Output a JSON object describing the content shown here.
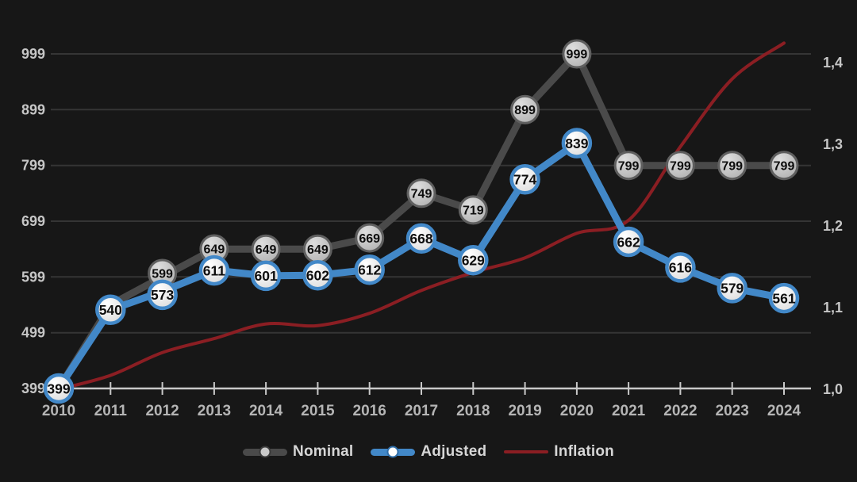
{
  "chart_data": {
    "type": "line",
    "title": "",
    "x": [
      2010,
      2011,
      2012,
      2013,
      2014,
      2015,
      2016,
      2017,
      2018,
      2019,
      2020,
      2021,
      2022,
      2023,
      2024
    ],
    "x_axis": {
      "tick_labels": [
        "2010",
        "2011",
        "2012",
        "2013",
        "2014",
        "2015",
        "2016",
        "2017",
        "2018",
        "2019",
        "2020",
        "2021",
        "2022",
        "2023",
        "2024"
      ]
    },
    "left_axis": {
      "tick_labels": [
        "399",
        "499",
        "599",
        "699",
        "799",
        "899",
        "999"
      ],
      "tick_values": [
        399,
        499,
        599,
        699,
        799,
        899,
        999
      ],
      "range": [
        399,
        999
      ]
    },
    "right_axis": {
      "tick_labels": [
        "1,0",
        "1,1",
        "1,2",
        "1,3",
        "1,4"
      ],
      "tick_values": [
        1.0,
        1.1,
        1.2,
        1.3,
        1.4
      ],
      "range": [
        1.0,
        1.42
      ]
    },
    "series": [
      {
        "name": "Nominal",
        "axis": "left",
        "color": "#4a4a4a",
        "marker_fill_light": "#dedede",
        "marker_fill_dark": "#b2b2b2",
        "marker_stroke": "#5f5f5f",
        "label_color": "#0d0d0d",
        "values": [
          399,
          549,
          599,
          649,
          649,
          649,
          669,
          749,
          719,
          899,
          999,
          799,
          799,
          799,
          799
        ],
        "labeled_values": [
          "399",
          "",
          "599",
          "649",
          "649",
          "649",
          "669",
          "749",
          "719",
          "899",
          "999",
          "799",
          "799",
          "799",
          "799"
        ],
        "hidden_marker_years": [
          2010,
          2011
        ]
      },
      {
        "name": "Adjusted",
        "axis": "left",
        "color": "#4288c8",
        "marker_fill_light": "#ffffff",
        "marker_fill_dark": "#dcdcdc",
        "marker_stroke": "#4288c8",
        "label_color": "#0d0d0d",
        "values": [
          399,
          540,
          573,
          611,
          601,
          602,
          612,
          668,
          629,
          774,
          839,
          662,
          616,
          579,
          561
        ],
        "labeled_values": [
          "399",
          "540",
          "573",
          "611",
          "601",
          "602",
          "612",
          "668",
          "629",
          "774",
          "839",
          "662",
          "616",
          "579",
          "561"
        ],
        "hidden_marker_years": []
      },
      {
        "name": "Inflation",
        "axis": "right",
        "color": "#8b1e23",
        "marker": "none",
        "values": [
          1.0,
          1.017,
          1.045,
          1.062,
          1.08,
          1.078,
          1.093,
          1.121,
          1.143,
          1.161,
          1.191,
          1.207,
          1.297,
          1.38,
          1.424
        ]
      }
    ],
    "legend": {
      "position": "bottom",
      "items": [
        "Nominal",
        "Adjusted",
        "Inflation"
      ]
    },
    "grid": "horizontal",
    "colors": {
      "background": "#171717",
      "gridline": "#353535",
      "axis_line": "#c9c9c9",
      "x_tick_label": "#b5b5b5",
      "y_tick_label": "#c6c6c6",
      "legend_text": "#d6d6d6",
      "nominal_legend_dot": "#c9c9c9",
      "adjusted_legend_dot": "#ffffff"
    }
  }
}
